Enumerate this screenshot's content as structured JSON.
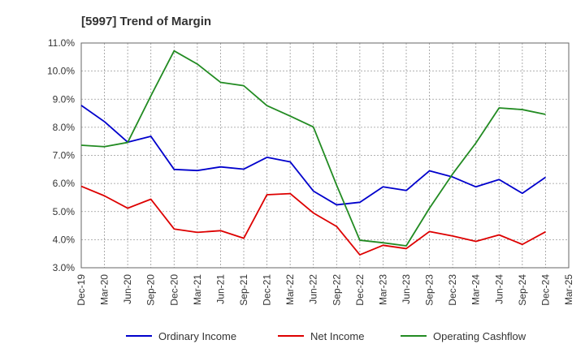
{
  "chart_data": {
    "type": "line",
    "title": "[5997]  Trend of Margin",
    "xlabel": "",
    "ylabel": "",
    "x": [
      "Dec-19",
      "Mar-20",
      "Jun-20",
      "Sep-20",
      "Dec-20",
      "Mar-21",
      "Jun-21",
      "Sep-21",
      "Dec-21",
      "Mar-22",
      "Jun-22",
      "Sep-22",
      "Dec-22",
      "Mar-23",
      "Jun-23",
      "Sep-23",
      "Dec-23",
      "Mar-24",
      "Jun-24",
      "Sep-24",
      "Dec-24",
      "Mar-25"
    ],
    "ylim": [
      3.0,
      11.0
    ],
    "yticks": [
      "3.0%",
      "4.0%",
      "5.0%",
      "6.0%",
      "7.0%",
      "8.0%",
      "9.0%",
      "10.0%",
      "11.0%"
    ],
    "grid": true,
    "legend_position": "bottom",
    "series": [
      {
        "name": "Ordinary Income",
        "color": "#0000cc",
        "values": [
          8.78,
          8.2,
          7.47,
          7.68,
          6.5,
          6.46,
          6.59,
          6.51,
          6.93,
          6.77,
          5.73,
          5.24,
          5.33,
          5.88,
          5.75,
          6.45,
          6.23,
          5.88,
          6.14,
          5.65,
          6.22,
          null
        ]
      },
      {
        "name": "Net Income",
        "color": "#dd0000",
        "values": [
          5.9,
          5.56,
          5.12,
          5.44,
          4.38,
          4.26,
          4.32,
          4.05,
          5.6,
          5.64,
          4.95,
          4.47,
          3.46,
          3.8,
          3.68,
          4.29,
          4.13,
          3.94,
          4.17,
          3.83,
          4.28,
          null
        ]
      },
      {
        "name": "Operating Cashflow",
        "color": "#228b22",
        "values": [
          7.36,
          7.31,
          7.46,
          9.12,
          10.72,
          10.25,
          9.6,
          9.48,
          8.77,
          8.4,
          8.01,
          5.94,
          3.98,
          3.89,
          3.78,
          5.12,
          6.34,
          7.44,
          8.69,
          8.63,
          8.46,
          null
        ]
      }
    ]
  }
}
